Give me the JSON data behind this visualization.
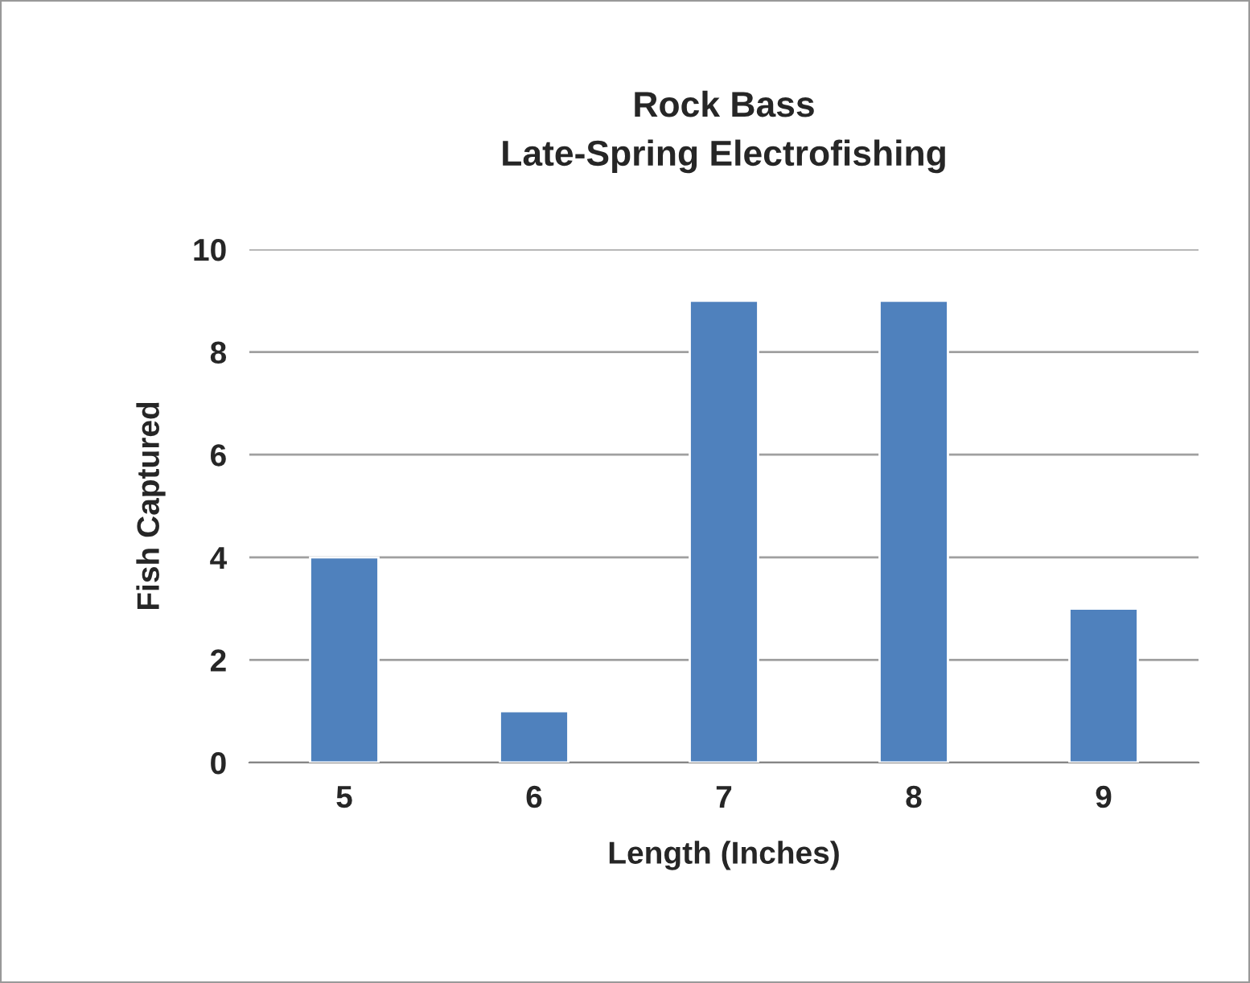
{
  "chart_data": {
    "type": "bar",
    "title": "Rock Bass\nLate-Spring Electrofishing",
    "xlabel": "Length (Inches)",
    "ylabel": "Fish Captured",
    "categories": [
      "5",
      "6",
      "7",
      "8",
      "9"
    ],
    "values": [
      4,
      1,
      9,
      9,
      3
    ],
    "color": "#4f81bd",
    "ylim": [
      0,
      10
    ],
    "yticks": [
      0,
      2,
      4,
      6,
      8,
      10
    ],
    "grid": "y",
    "legend": false
  }
}
